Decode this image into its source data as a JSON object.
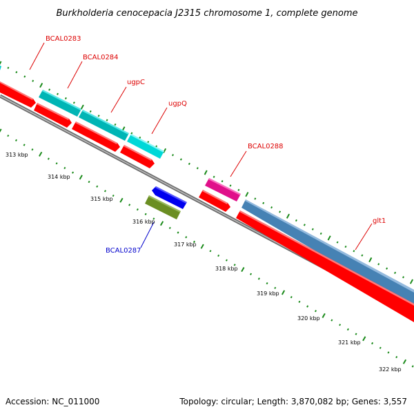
{
  "title": "Burkholderia cenocepacia J2315 chromosome 1, complete genome",
  "footer": {
    "accession": "Accession: NC_011000",
    "summary": "Topology: circular; Length: 3,870,082 bp; Genes: 3,557"
  },
  "kbp_ticks": [
    "313 kbp",
    "314 kbp",
    "315 kbp",
    "316 kbp",
    "317 kbp",
    "318 kbp",
    "319 kbp",
    "320 kbp",
    "321 kbp",
    "322 kbp"
  ],
  "genes": [
    {
      "name": "BCAL0283",
      "color": "#dd0000"
    },
    {
      "name": "BCAL0284",
      "color": "#dd0000"
    },
    {
      "name": "ugpC",
      "color": "#dd0000"
    },
    {
      "name": "ugpQ",
      "color": "#dd0000"
    },
    {
      "name": "BCAL0288",
      "color": "#dd0000"
    },
    {
      "name": "glt1",
      "color": "#dd0000"
    },
    {
      "name": "BCAL0287",
      "color": "#0000cc"
    }
  ],
  "colors": {
    "cds": "#ff0000",
    "gene_cyan": "#00cccc",
    "gene_pink": "#ff1493",
    "gene_steelblue": "#4682b4",
    "gene_blue": "#0000ff",
    "gene_olive": "#6b8e23",
    "backbone": "#808080",
    "tick": "#008000"
  }
}
